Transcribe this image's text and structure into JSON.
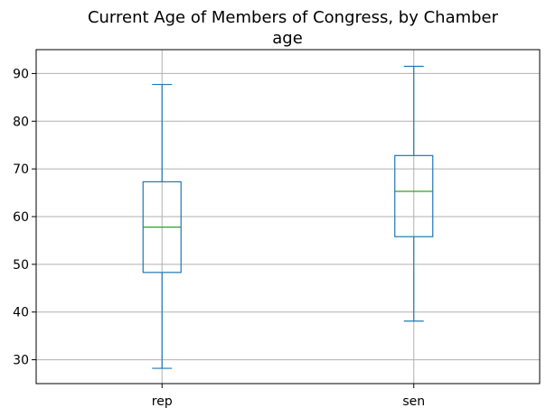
{
  "chart_data": {
    "type": "box",
    "title": "Current Age of Members of Congress, by Chamber",
    "subtitle": "age",
    "xlabel": "",
    "ylabel": "",
    "categories": [
      "rep",
      "sen"
    ],
    "boxes": [
      {
        "category": "rep",
        "whisker_low": 28.2,
        "q1": 48.3,
        "median": 57.8,
        "q3": 67.3,
        "whisker_high": 87.7
      },
      {
        "category": "sen",
        "whisker_low": 38.1,
        "q1": 55.8,
        "median": 65.3,
        "q3": 72.8,
        "whisker_high": 91.5
      }
    ],
    "yticks": [
      30,
      40,
      50,
      60,
      70,
      80,
      90
    ],
    "ylim": [
      25,
      95
    ],
    "grid": true,
    "colors": {
      "box": "#1f77b4",
      "median": "#2ca02c",
      "grid": "#b0b0b0",
      "axes": "#000000"
    }
  }
}
